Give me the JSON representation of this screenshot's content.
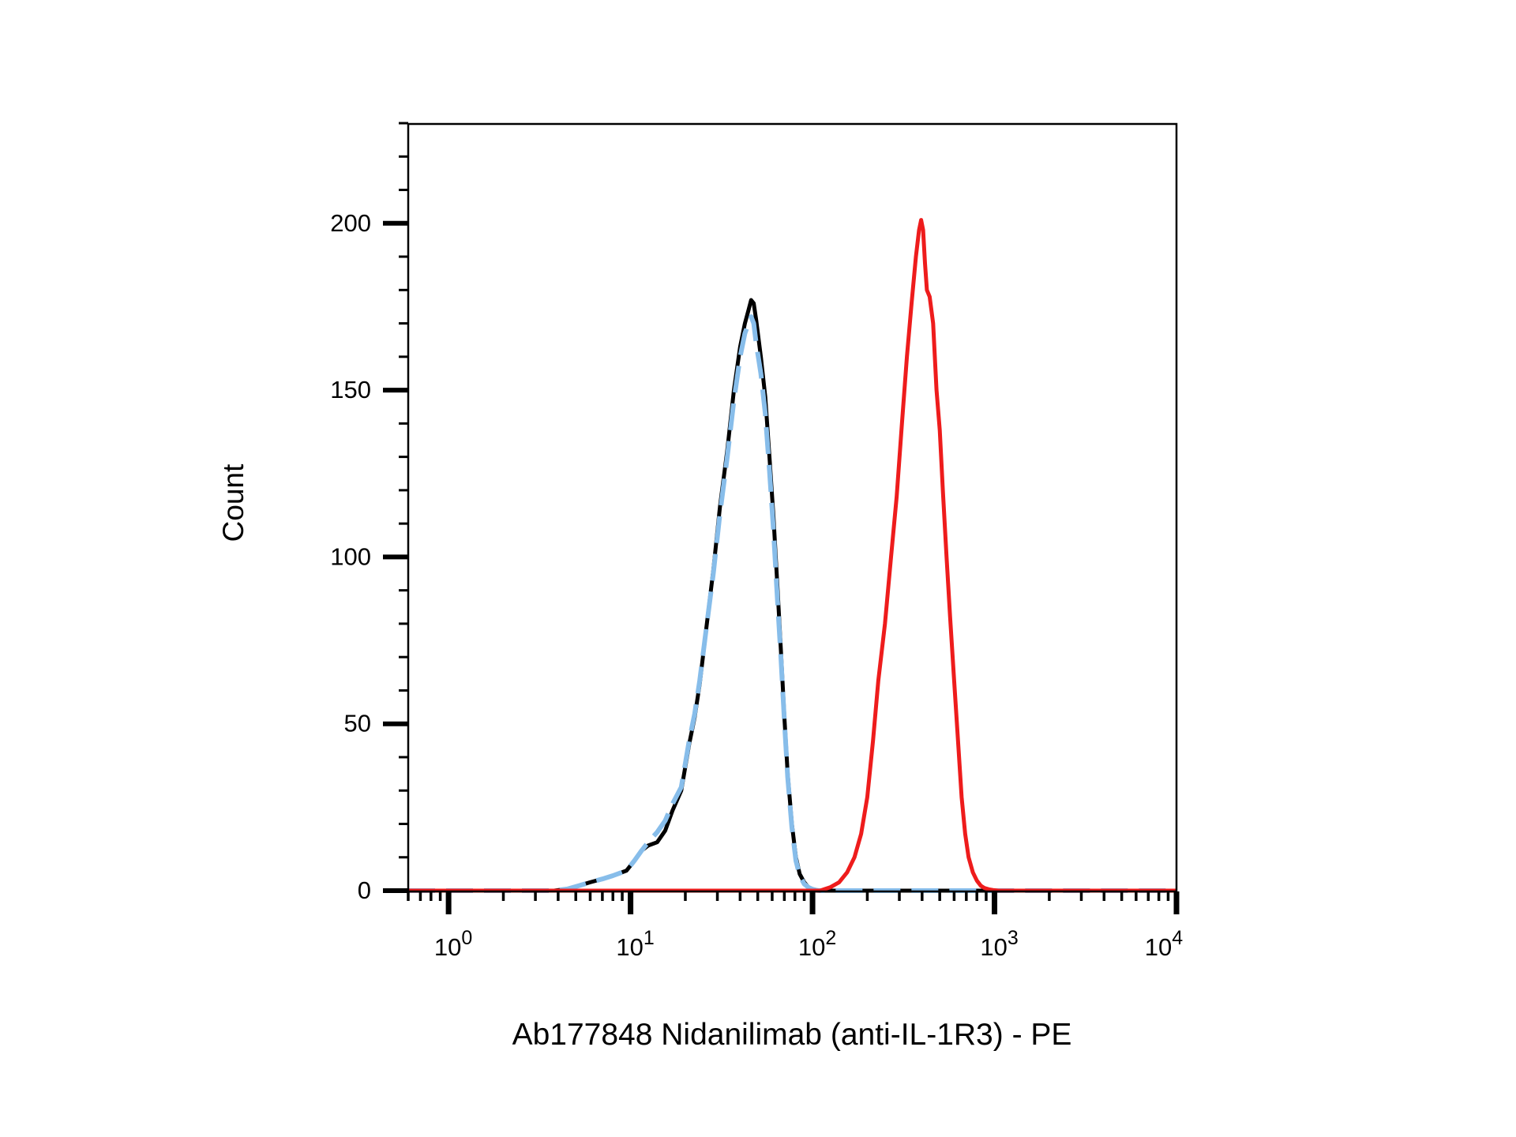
{
  "chart_data": {
    "type": "line",
    "title": "",
    "xlabel": "Ab177848 Nidanilimab (anti-IL-1R3) - PE",
    "ylabel": "Count",
    "x_scale": "log",
    "xlim": [
      0.6,
      10000
    ],
    "ylim": [
      0,
      230
    ],
    "grid": false,
    "legend": "none",
    "y_ticks": [
      "0",
      "50",
      "100",
      "150",
      "200"
    ],
    "y_tick_values": [
      0,
      50,
      100,
      150,
      200
    ],
    "x_ticks": [
      {
        "base": "10",
        "exp": "0",
        "value": 1
      },
      {
        "base": "10",
        "exp": "1",
        "value": 10
      },
      {
        "base": "10",
        "exp": "2",
        "value": 100
      },
      {
        "base": "10",
        "exp": "3",
        "value": 1000
      },
      {
        "base": "10",
        "exp": "4",
        "value": 10000
      }
    ],
    "series": [
      {
        "color": "#000000",
        "style": "solid",
        "x": [
          0.6,
          3.8,
          4.5,
          5.2,
          6,
          7,
          8,
          9.5,
          10.5,
          11.5,
          12.5,
          14,
          15.5,
          17,
          19,
          21,
          22.5,
          24,
          26,
          28.5,
          31,
          34,
          37,
          40,
          42.5,
          44.5,
          46,
          47.5,
          49,
          52,
          55,
          58,
          61,
          64,
          67,
          70,
          73,
          77,
          81,
          85,
          90,
          95,
          100,
          105,
          110,
          130,
          10000
        ],
        "y": [
          0,
          0,
          0.5,
          1.5,
          2.5,
          3.5,
          4.5,
          6,
          9,
          12,
          13.5,
          14.5,
          18,
          24,
          30,
          44,
          52,
          62,
          78,
          96,
          115,
          132,
          150,
          163,
          170,
          174,
          177,
          176,
          171,
          160,
          148,
          130,
          112,
          92,
          72,
          52,
          35,
          20,
          10,
          5,
          2.5,
          1,
          0.5,
          0.2,
          0,
          0,
          0
        ]
      },
      {
        "color": "#87bdea",
        "style": "dashed",
        "x": [
          0.6,
          3.8,
          4.5,
          5.2,
          6,
          7,
          8,
          9.5,
          10.5,
          11.5,
          12.5,
          14,
          15.5,
          17,
          19,
          21,
          22.5,
          24,
          26,
          28.5,
          31,
          34,
          37,
          40,
          42.5,
          44.5,
          46,
          47.5,
          49,
          52,
          55,
          58,
          61,
          64,
          67,
          70,
          73,
          77,
          81,
          85,
          90,
          95,
          100,
          105,
          110,
          130,
          10000
        ],
        "y": [
          0,
          0,
          0.5,
          1.5,
          2.5,
          3.5,
          4.5,
          6,
          9,
          12,
          14.5,
          17.5,
          21,
          26,
          31,
          45,
          53,
          63,
          78,
          95,
          113,
          130,
          147,
          160,
          167,
          170,
          172,
          170,
          164,
          155,
          143,
          126,
          108,
          88,
          70,
          51,
          34,
          19,
          9,
          4.5,
          2,
          1,
          0.4,
          0.1,
          0,
          0,
          0
        ]
      },
      {
        "color": "#ee1c1c",
        "style": "solid",
        "x": [
          0.6,
          110,
          125,
          140,
          155,
          170,
          185,
          200,
          215,
          230,
          250,
          270,
          290,
          310,
          330,
          350,
          370,
          385,
          395,
          405,
          415,
          425,
          440,
          460,
          480,
          500,
          520,
          545,
          570,
          600,
          630,
          660,
          690,
          720,
          760,
          800,
          840,
          880,
          930,
          980,
          1050,
          1150,
          1300,
          1500,
          10000
        ],
        "y": [
          0,
          0,
          1,
          2.5,
          5.5,
          10,
          17,
          28,
          45,
          63,
          80,
          100,
          118,
          140,
          160,
          176,
          190,
          198,
          201,
          198,
          188,
          180,
          178,
          170,
          150,
          138,
          120,
          100,
          82,
          63,
          45,
          28,
          17,
          10,
          5.5,
          3,
          1.5,
          0.8,
          0.4,
          0.2,
          0,
          0,
          0,
          0,
          0
        ]
      }
    ]
  }
}
